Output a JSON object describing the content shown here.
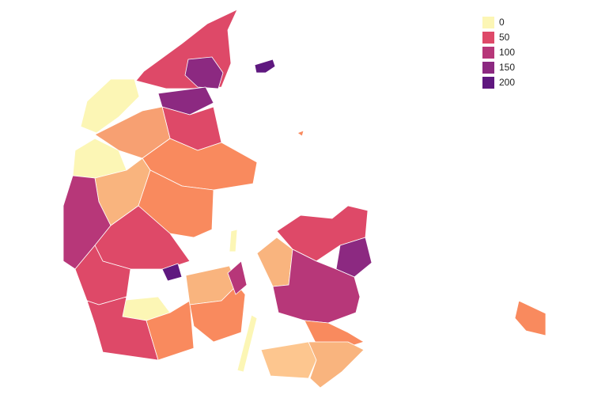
{
  "legend": [
    {
      "value": 0,
      "color": "#fcf6b5"
    },
    {
      "value": 50,
      "color": "#de4968"
    },
    {
      "value": 100,
      "color": "#b73779"
    },
    {
      "value": 150,
      "color": "#8c2981"
    },
    {
      "value": 200,
      "color": "#5f187f"
    }
  ]
}
